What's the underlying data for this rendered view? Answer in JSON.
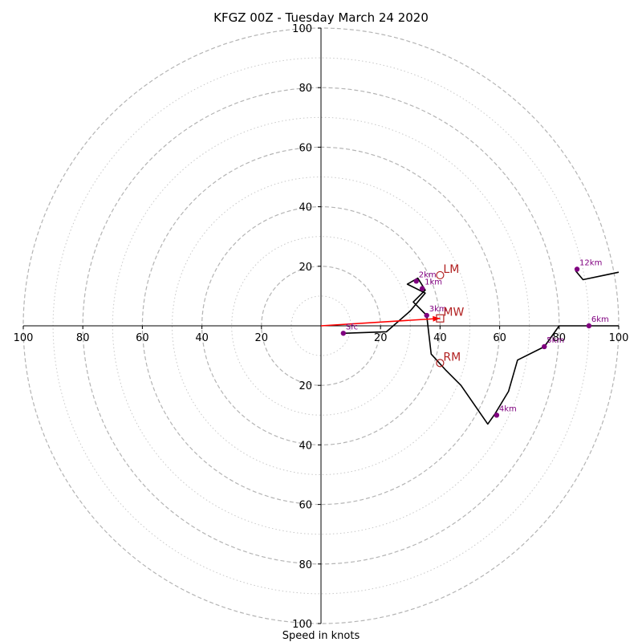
{
  "chart_data": {
    "type": "hodograph",
    "title": "KFGZ 00Z - Tuesday March 24 2020",
    "xlabel": "Speed in knots",
    "xlim": [
      -100,
      100
    ],
    "ylim": [
      -100,
      100
    ],
    "rings": {
      "major_dashed": [
        20,
        40,
        60,
        80,
        100
      ],
      "minor_dotted": [
        10,
        30,
        50,
        70,
        90
      ]
    },
    "x_tick_labels": [
      "100",
      "80",
      "60",
      "40",
      "20",
      "20",
      "40",
      "60",
      "80",
      "100"
    ],
    "x_tick_values": [
      -100,
      -80,
      -60,
      -40,
      -20,
      20,
      40,
      60,
      80,
      100
    ],
    "y_tick_labels": [
      "100",
      "80",
      "60",
      "40",
      "20",
      "20",
      "40",
      "60",
      "80",
      "100"
    ],
    "y_tick_values": [
      100,
      80,
      60,
      40,
      20,
      -20,
      -40,
      -60,
      -80,
      -100
    ],
    "trace": {
      "color": "#000000",
      "points": [
        [
          7.5,
          -2.5
        ],
        [
          22,
          -2
        ],
        [
          30,
          5
        ],
        [
          35,
          11
        ],
        [
          29,
          14
        ],
        [
          32.5,
          16
        ],
        [
          35,
          12
        ],
        [
          31,
          8
        ],
        [
          35.5,
          3.5
        ],
        [
          37,
          -9.5
        ],
        [
          42,
          -15
        ],
        [
          47,
          -20
        ],
        [
          56,
          -33
        ],
        [
          58.5,
          -29.5
        ],
        [
          63,
          -22
        ],
        [
          66,
          -11.5
        ],
        [
          75,
          -7
        ],
        [
          80,
          0
        ],
        [
          90,
          0
        ],
        [
          100,
          0
        ]
      ],
      "upper_points": [
        [
          85.5,
          18.5
        ],
        [
          88,
          15.5
        ],
        [
          100,
          18
        ]
      ]
    },
    "height_markers": [
      {
        "label": "Sfc",
        "x": 7.5,
        "y": -2.5
      },
      {
        "label": "1km",
        "x": 34,
        "y": 12.5
      },
      {
        "label": "2km",
        "x": 32,
        "y": 15
      },
      {
        "label": "3km",
        "x": 35.5,
        "y": 3.5
      },
      {
        "label": "4km",
        "x": 59,
        "y": -30
      },
      {
        "label": "5km",
        "x": 75,
        "y": -7
      },
      {
        "label": "6km",
        "x": 90,
        "y": 0
      },
      {
        "label": "12km",
        "x": 86,
        "y": 19
      }
    ],
    "marker_color": "#800080",
    "motions": [
      {
        "label": "LM",
        "x": 40,
        "y": 17,
        "shape": "circle"
      },
      {
        "label": "MW",
        "x": 40,
        "y": 2.5,
        "shape": "square"
      },
      {
        "label": "RM",
        "x": 40,
        "y": -12.5,
        "shape": "circle"
      }
    ],
    "motion_color": "#b22222",
    "shear_vector": {
      "from": [
        0,
        0
      ],
      "to": [
        40,
        2.5
      ],
      "color": "#ff0000"
    }
  }
}
